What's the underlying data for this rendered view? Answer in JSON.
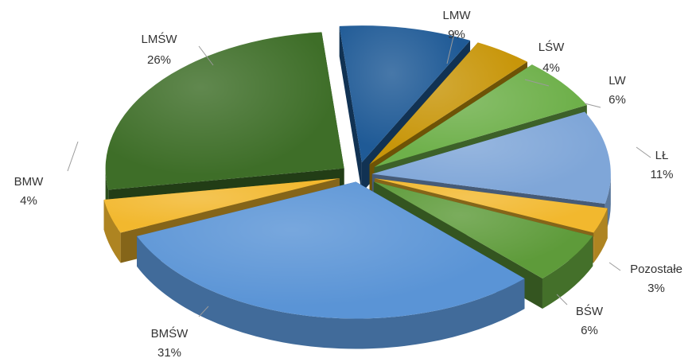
{
  "chart_data": {
    "type": "pie",
    "title": "",
    "categories": [
      "LMW",
      "LŚW",
      "LW",
      "LŁ",
      "Pozostałe",
      "BŚW",
      "BMŚW",
      "BMW",
      "LMŚW"
    ],
    "values": [
      9,
      4,
      6,
      11,
      3,
      6,
      31,
      4,
      26
    ],
    "value_labels": [
      "9%",
      "4%",
      "6%",
      "11%",
      "3%",
      "6%",
      "31%",
      "4%",
      "26%"
    ],
    "colors": [
      "#1F5A96",
      "#C8960A",
      "#6EB04A",
      "#7FA6D8",
      "#F2B82E",
      "#5E9B3A",
      "#5A94D6",
      "#F2B82E",
      "#3E6E28"
    ],
    "legend": "none",
    "style": "exploded 3d pie, data labels outside with leader lines"
  }
}
